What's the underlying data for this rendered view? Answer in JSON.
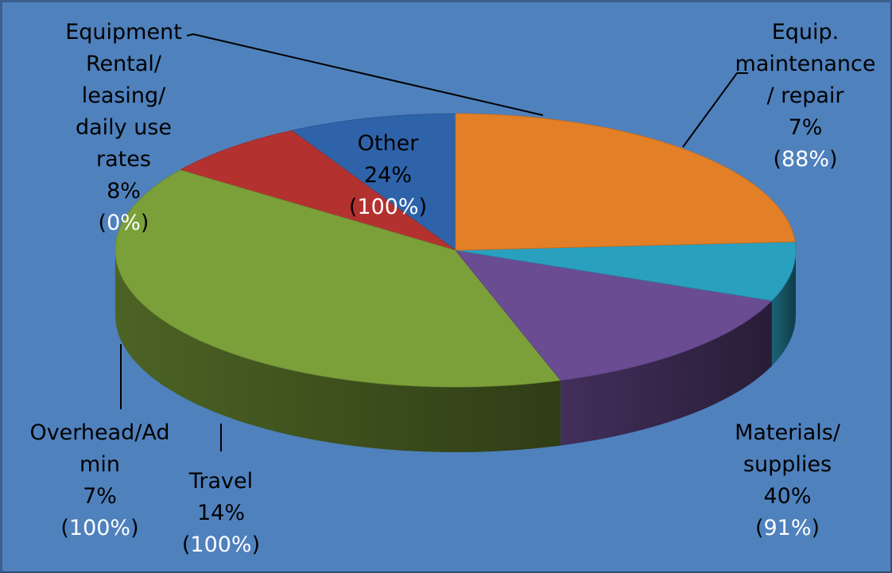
{
  "chart_data": {
    "type": "pie",
    "style": "3d",
    "legend": "none",
    "slices": [
      {
        "name": "Equipment Rental/ leasing/ daily use rates",
        "label_lines": [
          "Equipment",
          "Rental/",
          "leasing/",
          "daily use",
          "rates"
        ],
        "percent_label": "8%",
        "value": 8,
        "paren_value": "0%",
        "color": "#2e63aa"
      },
      {
        "name": "Equip. maintenance / repair",
        "label_lines": [
          "Equip.",
          "maintenance",
          "/ repair"
        ],
        "percent_label": "7%",
        "value": 7,
        "paren_value": "88%",
        "color": "#b33230"
      },
      {
        "name": "Materials/ supplies",
        "label_lines": [
          "Materials/",
          "supplies"
        ],
        "percent_label": "40%",
        "value": 40,
        "paren_value": "91%",
        "color": "#7ba03a"
      },
      {
        "name": "Travel",
        "label_lines": [
          "Travel"
        ],
        "percent_label": "14%",
        "value": 14,
        "paren_value": "100%",
        "color": "#6a4c93"
      },
      {
        "name": "Overhead/Admin",
        "label_lines": [
          "Overhead/Ad",
          "min"
        ],
        "percent_label": "7%",
        "value": 7,
        "paren_value": "100%",
        "color": "#2aa0bf"
      },
      {
        "name": "Other",
        "label_lines": [
          "Other"
        ],
        "percent_label": "24%",
        "value": 24,
        "paren_value": "100%",
        "color": "#e37f26"
      }
    ]
  }
}
